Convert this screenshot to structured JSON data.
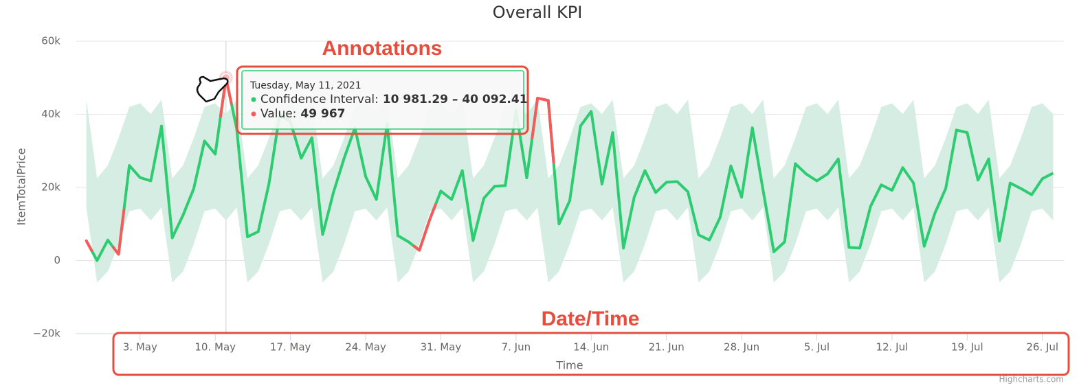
{
  "chart_data": {
    "type": "line-with-range",
    "title": "Overall KPI",
    "y_axis_title": "ItemTotalPrice",
    "x_axis_title": "Time",
    "credits": "Highcharts.com",
    "annotations": [
      "Annotations",
      "Date/Time"
    ],
    "tooltip": {
      "header": "Tuesday, May 11, 2021",
      "range_name": "Confidence Interval:",
      "range_text": "10 981.29 – 40 092.41",
      "value_name": "Value:",
      "value_text": "49 967"
    },
    "ylim": [
      -20000,
      60000
    ],
    "yticks": [
      {
        "value": 60000,
        "label": "60k"
      },
      {
        "value": 40000,
        "label": "40k"
      },
      {
        "value": 20000,
        "label": "20k"
      },
      0,
      {
        "value": -20000,
        "label": "−20k"
      }
    ],
    "xlim": [
      "2021-04-27",
      "2021-07-28"
    ],
    "xticks": [
      {
        "value": "2021-05-03",
        "label": "3. May"
      },
      {
        "value": "2021-05-10",
        "label": "10. May"
      },
      {
        "value": "2021-05-17",
        "label": "17. May"
      },
      {
        "value": "2021-05-24",
        "label": "24. May"
      },
      {
        "value": "2021-05-31",
        "label": "31. May"
      },
      {
        "value": "2021-06-07",
        "label": "7. Jun"
      },
      {
        "value": "2021-06-14",
        "label": "14. Jun"
      },
      {
        "value": "2021-06-21",
        "label": "21. Jun"
      },
      {
        "value": "2021-06-28",
        "label": "28. Jun"
      },
      {
        "value": "2021-07-05",
        "label": "5. Jul"
      },
      {
        "value": "2021-07-12",
        "label": "12. Jul"
      },
      {
        "value": "2021-07-19",
        "label": "19. Jul"
      },
      {
        "value": "2021-07-26",
        "label": "26. Jul"
      }
    ],
    "grid": true,
    "x": [
      "2021-04-28",
      "2021-04-29",
      "2021-04-30",
      "2021-05-01",
      "2021-05-02",
      "2021-05-03",
      "2021-05-04",
      "2021-05-05",
      "2021-05-06",
      "2021-05-07",
      "2021-05-08",
      "2021-05-09",
      "2021-05-10",
      "2021-05-11",
      "2021-05-12",
      "2021-05-13",
      "2021-05-14",
      "2021-05-15",
      "2021-05-16",
      "2021-05-17",
      "2021-05-18",
      "2021-05-19",
      "2021-05-20",
      "2021-05-21",
      "2021-05-22",
      "2021-05-23",
      "2021-05-24",
      "2021-05-25",
      "2021-05-26",
      "2021-05-27",
      "2021-05-28",
      "2021-05-29",
      "2021-05-30",
      "2021-05-31",
      "2021-06-01",
      "2021-06-02",
      "2021-06-03",
      "2021-06-04",
      "2021-06-05",
      "2021-06-06",
      "2021-06-07",
      "2021-06-08",
      "2021-06-09",
      "2021-06-10",
      "2021-06-11",
      "2021-06-12",
      "2021-06-13",
      "2021-06-14",
      "2021-06-15",
      "2021-06-16",
      "2021-06-17",
      "2021-06-18",
      "2021-06-19",
      "2021-06-20",
      "2021-06-21",
      "2021-06-22",
      "2021-06-23",
      "2021-06-24",
      "2021-06-25",
      "2021-06-26",
      "2021-06-27",
      "2021-06-28",
      "2021-06-29",
      "2021-06-30",
      "2021-07-01",
      "2021-07-02",
      "2021-07-03",
      "2021-07-04",
      "2021-07-05",
      "2021-07-06",
      "2021-07-07",
      "2021-07-08",
      "2021-07-09",
      "2021-07-10",
      "2021-07-11",
      "2021-07-12",
      "2021-07-13",
      "2021-07-14",
      "2021-07-15",
      "2021-07-16",
      "2021-07-17",
      "2021-07-18",
      "2021-07-19",
      "2021-07-20",
      "2021-07-21",
      "2021-07-22",
      "2021-07-23",
      "2021-07-24",
      "2021-07-25",
      "2021-07-26",
      "2021-07-27"
    ],
    "series": [
      {
        "type": "arearange",
        "color": "#d5ede2",
        "lower": [
          14500,
          -6000,
          -3000,
          4500,
          13500,
          14200,
          10981.29,
          14500,
          -6000,
          -3000,
          4500,
          13500,
          14200,
          10981.29,
          14500,
          -6000,
          -3000,
          4500,
          13500,
          14200,
          10981.29,
          14500,
          -6000,
          -3000,
          4500,
          13500,
          14200,
          10981.29,
          14500,
          -6000,
          -3000,
          4500,
          13500,
          14200,
          10981.29,
          14500,
          -6000,
          -3000,
          4500,
          13500,
          14200,
          10981.29,
          14500,
          -6000,
          -3000,
          4500,
          13500,
          14200,
          10981.29,
          14500,
          -6000,
          -3000,
          4500,
          13500,
          14200,
          10981.29,
          14500,
          -6000,
          -3000,
          4500,
          13500,
          14200,
          10981.29,
          14500,
          -6000,
          -3000,
          4500,
          13500,
          14200,
          10981.29,
          14500,
          -6000,
          -3000,
          4500,
          13500,
          14200,
          10981.29,
          14500,
          -6000,
          -3000,
          4500,
          13500,
          14200,
          10981.29,
          14500,
          -6000,
          -3000,
          4500,
          13500,
          14200,
          10981.29
        ],
        "upper": [
          44000,
          22500,
          26000,
          33500,
          42000,
          43000,
          40092.41,
          44000,
          22500,
          26000,
          33500,
          42000,
          43000,
          40092.41,
          44000,
          22500,
          26000,
          33500,
          42000,
          43000,
          40092.41,
          44000,
          22500,
          26000,
          33500,
          42000,
          43000,
          40092.41,
          44000,
          22500,
          26000,
          33500,
          42000,
          43000,
          40092.41,
          44000,
          22500,
          26000,
          33500,
          42000,
          43000,
          40092.41,
          44000,
          22500,
          26000,
          33500,
          42000,
          43000,
          40092.41,
          44000,
          22500,
          26000,
          33500,
          42000,
          43000,
          40092.41,
          44000,
          22500,
          26000,
          33500,
          42000,
          43000,
          40092.41,
          44000,
          22500,
          26000,
          33500,
          42000,
          43000,
          40092.41,
          44000,
          22500,
          26000,
          33500,
          42000,
          43000,
          40092.41,
          44000,
          22500,
          26000,
          33500,
          42000,
          43000,
          40092.41,
          44000,
          22500,
          26000,
          33500,
          42000,
          43000,
          40092.41
        ]
      },
      {
        "type": "line",
        "color": "#2ecc71",
        "outlier_color": "#f45b5b",
        "values": [
          5400,
          0,
          5600,
          1700,
          26000,
          22700,
          21800,
          36800,
          6200,
          12400,
          19700,
          32700,
          29100,
          49967,
          36000,
          6500,
          7900,
          21000,
          40000,
          38000,
          28000,
          33600,
          7100,
          18600,
          28000,
          36300,
          23000,
          16700,
          37400,
          6800,
          5100,
          2800,
          11500,
          19000,
          16700,
          24600,
          5500,
          17000,
          20300,
          20500,
          41000,
          22600,
          44400,
          43800,
          10000,
          16400,
          36800,
          40800,
          20900,
          35000,
          3400,
          17300,
          24600,
          18600,
          21400,
          21600,
          18800,
          7000,
          5600,
          11800,
          25900,
          17300,
          36300,
          19200,
          2400,
          5100,
          26500,
          23700,
          21800,
          23700,
          27800,
          3600,
          3400,
          14800,
          20700,
          19200,
          25400,
          21200,
          3900,
          13000,
          19700,
          35700,
          35000,
          22000,
          27800,
          5300,
          21200,
          19700,
          18000,
          22400,
          23900
        ]
      }
    ]
  }
}
